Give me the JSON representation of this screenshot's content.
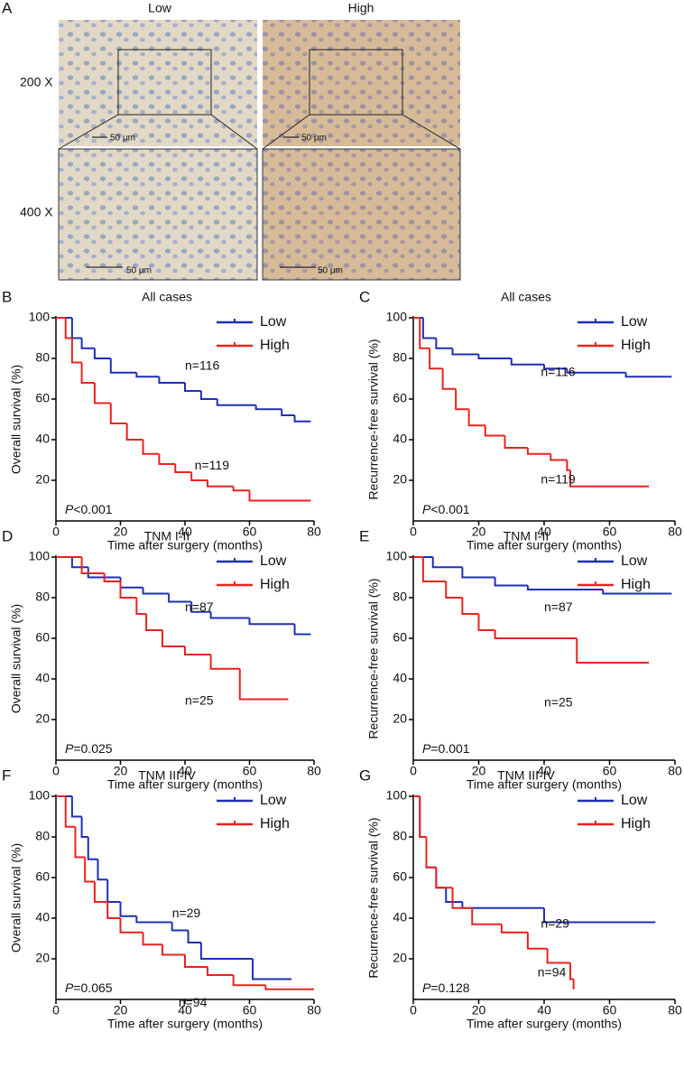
{
  "panel_a": {
    "label": "A",
    "columns": [
      "Low",
      "High"
    ],
    "rows": [
      "200 X",
      "400 X"
    ],
    "scale_bars": [
      "50 μm",
      "50 μm",
      "50 μm",
      "50 μm"
    ]
  },
  "chart_data": [
    {
      "panel": "B",
      "type": "step",
      "title": "All cases",
      "xlabel": "Time after surgery (months)",
      "ylabel": "Overall survival (%)",
      "xlim": [
        0,
        80
      ],
      "ylim": [
        0,
        100
      ],
      "xticks": [
        0,
        20,
        40,
        60,
        80
      ],
      "yticks": [
        20,
        40,
        60,
        80,
        100
      ],
      "legend": "upper right",
      "annotations": [
        "n=116",
        "n=119"
      ],
      "p_value": [
        "P",
        "<0.001"
      ],
      "series": [
        {
          "name": "Low",
          "color": "#1f2fb5",
          "x": [
            0,
            5,
            8,
            12,
            17,
            25,
            32,
            40,
            45,
            50,
            62,
            70,
            74,
            79
          ],
          "values": [
            100,
            90,
            85,
            80,
            73,
            71,
            68,
            64,
            60,
            57,
            55,
            52,
            49,
            49
          ]
        },
        {
          "name": "High",
          "color": "#e8231f",
          "x": [
            0,
            3,
            5,
            8,
            12,
            17,
            22,
            27,
            32,
            37,
            42,
            47,
            55,
            60,
            79
          ],
          "values": [
            100,
            90,
            78,
            68,
            58,
            48,
            40,
            33,
            28,
            24,
            20,
            17,
            15,
            10,
            10
          ]
        }
      ]
    },
    {
      "panel": "C",
      "type": "step",
      "title": "All cases",
      "xlabel": "Time after surgery (months)",
      "ylabel": "Recurrence-free survival (%)",
      "xlim": [
        0,
        80
      ],
      "ylim": [
        0,
        100
      ],
      "xticks": [
        0,
        20,
        40,
        60,
        80
      ],
      "yticks": [
        20,
        40,
        60,
        80,
        100
      ],
      "legend": "upper right",
      "annotations": [
        "n=116",
        "n=119"
      ],
      "p_value": [
        "P",
        "<0.001"
      ],
      "series": [
        {
          "name": "Low",
          "color": "#1f2fb5",
          "x": [
            0,
            3,
            7,
            12,
            20,
            30,
            40,
            47,
            65,
            79
          ],
          "values": [
            100,
            90,
            85,
            82,
            80,
            77,
            75,
            73,
            71,
            71
          ]
        },
        {
          "name": "High",
          "color": "#e8231f",
          "x": [
            0,
            2,
            5,
            9,
            13,
            17,
            22,
            28,
            35,
            42,
            47,
            48,
            72
          ],
          "values": [
            100,
            85,
            75,
            65,
            55,
            47,
            42,
            36,
            33,
            30,
            25,
            17,
            17
          ]
        }
      ]
    },
    {
      "panel": "D",
      "type": "step",
      "title": "TNM I-II",
      "xlabel": "Time after surgery (months)",
      "ylabel": "Overall survival (%)",
      "xlim": [
        0,
        80
      ],
      "ylim": [
        0,
        100
      ],
      "xticks": [
        0,
        20,
        40,
        60,
        80
      ],
      "yticks": [
        20,
        40,
        60,
        80,
        100
      ],
      "legend": "upper right",
      "annotations": [
        "n=87",
        "n=25"
      ],
      "p_value": [
        "P",
        "=0.025"
      ],
      "series": [
        {
          "name": "Low",
          "color": "#1f2fb5",
          "x": [
            0,
            5,
            10,
            20,
            27,
            35,
            42,
            48,
            60,
            74,
            79
          ],
          "values": [
            100,
            95,
            90,
            85,
            82,
            78,
            73,
            70,
            67,
            62,
            62
          ]
        },
        {
          "name": "High",
          "color": "#e8231f",
          "x": [
            0,
            8,
            15,
            20,
            25,
            28,
            33,
            40,
            48,
            57,
            72
          ],
          "values": [
            100,
            92,
            88,
            80,
            72,
            64,
            56,
            52,
            45,
            30,
            30
          ]
        }
      ]
    },
    {
      "panel": "E",
      "type": "step",
      "title": "TNM I-II",
      "xlabel": "Time after surgery (months)",
      "ylabel": "Recurrence-free survival (%)",
      "xlim": [
        0,
        80
      ],
      "ylim": [
        0,
        100
      ],
      "xticks": [
        0,
        20,
        40,
        60,
        80
      ],
      "yticks": [
        20,
        40,
        60,
        80,
        100
      ],
      "legend": "upper right",
      "annotations": [
        "n=87",
        "n=25"
      ],
      "p_value": [
        "P",
        "=0.001"
      ],
      "series": [
        {
          "name": "Low",
          "color": "#1f2fb5",
          "x": [
            0,
            6,
            15,
            25,
            35,
            58,
            79
          ],
          "values": [
            100,
            95,
            90,
            86,
            84,
            82,
            82
          ]
        },
        {
          "name": "High",
          "color": "#e8231f",
          "x": [
            0,
            3,
            10,
            15,
            20,
            25,
            50,
            72
          ],
          "values": [
            100,
            88,
            80,
            72,
            64,
            60,
            48,
            48
          ]
        }
      ]
    },
    {
      "panel": "F",
      "type": "step",
      "title": "TNM III-IV",
      "xlabel": "Time after surgery (months)",
      "ylabel": "Overall survival (%)",
      "xlim": [
        0,
        80
      ],
      "ylim": [
        0,
        100
      ],
      "xticks": [
        0,
        20,
        40,
        60,
        80
      ],
      "yticks": [
        20,
        40,
        60,
        80,
        100
      ],
      "legend": "upper right",
      "annotations": [
        "n=29",
        "n=94"
      ],
      "p_value": [
        "P",
        "=0.065"
      ],
      "series": [
        {
          "name": "Low",
          "color": "#1f2fb5",
          "x": [
            0,
            5,
            8,
            10,
            13,
            16,
            20,
            25,
            36,
            41,
            45,
            61,
            73
          ],
          "values": [
            100,
            90,
            80,
            69,
            59,
            48,
            41,
            38,
            34,
            28,
            20,
            10,
            10
          ]
        },
        {
          "name": "High",
          "color": "#e8231f",
          "x": [
            0,
            3,
            6,
            9,
            12,
            16,
            20,
            27,
            33,
            40,
            47,
            55,
            65,
            80
          ],
          "values": [
            100,
            85,
            70,
            58,
            48,
            40,
            33,
            27,
            22,
            16,
            12,
            7,
            5,
            5
          ]
        }
      ]
    },
    {
      "panel": "G",
      "type": "step",
      "title": "TNM III-IV",
      "xlabel": "Time after surgery (months)",
      "ylabel": "Recurrence-free survival (%)",
      "xlim": [
        0,
        80
      ],
      "ylim": [
        0,
        100
      ],
      "xticks": [
        0,
        20,
        40,
        60,
        80
      ],
      "yticks": [
        20,
        40,
        60,
        80,
        100
      ],
      "legend": "upper right",
      "annotations": [
        "n=29",
        "n=94"
      ],
      "p_value": [
        "P",
        "=0.128"
      ],
      "series": [
        {
          "name": "Low",
          "color": "#1f2fb5",
          "x": [
            0,
            2,
            4,
            7,
            10,
            15,
            40,
            74
          ],
          "values": [
            100,
            80,
            65,
            55,
            48,
            45,
            38,
            38
          ]
        },
        {
          "name": "High",
          "color": "#e8231f",
          "x": [
            0,
            2,
            4,
            7,
            12,
            18,
            27,
            35,
            41,
            48,
            49
          ],
          "values": [
            100,
            80,
            65,
            55,
            45,
            37,
            33,
            25,
            18,
            10,
            5
          ]
        }
      ]
    }
  ]
}
